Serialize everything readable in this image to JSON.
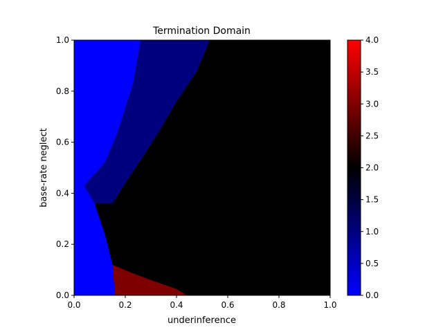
{
  "chart_data": {
    "type": "heatmap",
    "title": "Termination Domain",
    "xlabel": "underinference",
    "ylabel": "base-rate neglect",
    "xlim": [
      0.0,
      1.0
    ],
    "ylim": [
      0.0,
      1.0
    ],
    "x_ticks": [
      "0.0",
      "0.2",
      "0.4",
      "0.6",
      "0.8",
      "1.0"
    ],
    "y_ticks": [
      "0.0",
      "0.2",
      "0.4",
      "0.6",
      "0.8",
      "1.0"
    ],
    "colorbar": {
      "range": [
        0.0,
        4.0
      ],
      "ticks": [
        "0.0",
        "0.5",
        "1.0",
        "1.5",
        "2.0",
        "2.5",
        "3.0",
        "3.5",
        "4.0"
      ],
      "colors": [
        "#0000ff",
        "#000000",
        "#ff0000"
      ]
    },
    "background_value": 2.0,
    "regions": [
      {
        "name": "value-0",
        "value": 0.0,
        "color": "#0000ff",
        "polygon": [
          [
            0.0,
            0.0
          ],
          [
            0.0,
            1.0
          ],
          [
            0.26,
            1.0
          ],
          [
            0.23,
            0.83
          ],
          [
            0.17,
            0.64
          ],
          [
            0.12,
            0.52
          ],
          [
            0.04,
            0.43
          ],
          [
            0.08,
            0.36
          ],
          [
            0.12,
            0.24
          ],
          [
            0.15,
            0.12
          ],
          [
            0.16,
            0.0
          ]
        ]
      },
      {
        "name": "value-1",
        "value": 1.0,
        "color": "#00007f",
        "polygon": [
          [
            0.26,
            1.0
          ],
          [
            0.53,
            1.0
          ],
          [
            0.48,
            0.88
          ],
          [
            0.4,
            0.76
          ],
          [
            0.33,
            0.64
          ],
          [
            0.26,
            0.53
          ],
          [
            0.2,
            0.44
          ],
          [
            0.15,
            0.36
          ],
          [
            0.08,
            0.36
          ],
          [
            0.04,
            0.43
          ],
          [
            0.12,
            0.52
          ],
          [
            0.17,
            0.64
          ],
          [
            0.23,
            0.83
          ]
        ]
      },
      {
        "name": "value-3",
        "value": 3.0,
        "color": "#7f0000",
        "polygon": [
          [
            0.16,
            0.0
          ],
          [
            0.44,
            0.0
          ],
          [
            0.4,
            0.025
          ],
          [
            0.3,
            0.06
          ],
          [
            0.22,
            0.09
          ],
          [
            0.15,
            0.12
          ]
        ]
      }
    ]
  }
}
